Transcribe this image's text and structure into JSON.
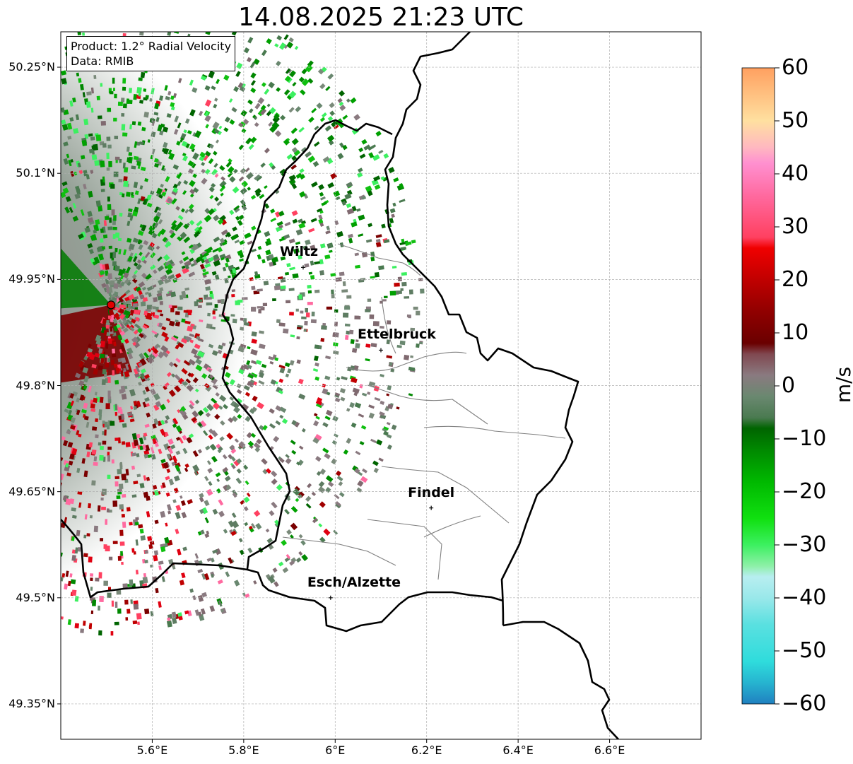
{
  "title": "14.08.2025 21:23 UTC",
  "info": {
    "product": "Product: 1.2° Radial Velocity",
    "data": "Data: RMIB"
  },
  "cities": [
    {
      "name": "Wiltz",
      "lon": 5.93,
      "lat": 49.967
    },
    {
      "name": "Ettelbruck",
      "lon": 6.1,
      "lat": 49.85
    },
    {
      "name": "Findel",
      "lon": 6.21,
      "lat": 49.627
    },
    {
      "name": "Esch/Alzette",
      "lon": 5.99,
      "lat": 49.5
    }
  ],
  "radar_site": {
    "lon": 5.51,
    "lat": 49.914
  },
  "map_extent": {
    "lon_min": 5.4,
    "lon_max": 6.8,
    "lat_min": 49.3,
    "lat_max": 50.3
  },
  "axes": {
    "x_ticks": [
      {
        "value": 5.6,
        "label": "5.6°E"
      },
      {
        "value": 5.8,
        "label": "5.8°E"
      },
      {
        "value": 6.0,
        "label": "6°E"
      },
      {
        "value": 6.2,
        "label": "6.2°E"
      },
      {
        "value": 6.4,
        "label": "6.4°E"
      },
      {
        "value": 6.6,
        "label": "6.6°E"
      }
    ],
    "y_ticks": [
      {
        "value": 50.25,
        "label": "50.25°N"
      },
      {
        "value": 50.1,
        "label": "50.1°N"
      },
      {
        "value": 49.95,
        "label": "49.95°N"
      },
      {
        "value": 49.8,
        "label": "49.8°N"
      },
      {
        "value": 49.65,
        "label": "49.65°N"
      },
      {
        "value": 49.5,
        "label": "49.5°N"
      },
      {
        "value": 49.35,
        "label": "49.35°N"
      }
    ]
  },
  "colorbar": {
    "label": "m/s",
    "min": -60,
    "max": 60,
    "ticks": [
      {
        "value": 60,
        "label": "60"
      },
      {
        "value": 50,
        "label": "50"
      },
      {
        "value": 40,
        "label": "40"
      },
      {
        "value": 30,
        "label": "30"
      },
      {
        "value": 20,
        "label": "20"
      },
      {
        "value": 10,
        "label": "10"
      },
      {
        "value": 0,
        "label": "0"
      },
      {
        "value": -10,
        "label": "−10"
      },
      {
        "value": -20,
        "label": "−20"
      },
      {
        "value": -30,
        "label": "−30"
      },
      {
        "value": -40,
        "label": "−40"
      },
      {
        "value": -50,
        "label": "−50"
      },
      {
        "value": -60,
        "label": "−60"
      }
    ],
    "stops": [
      {
        "value": -60,
        "color": "#2080c0"
      },
      {
        "value": -56,
        "color": "#26b4d0"
      },
      {
        "value": -52,
        "color": "#2fdcdc"
      },
      {
        "value": -45,
        "color": "#5ae0e0"
      },
      {
        "value": -40,
        "color": "#9ae8ea"
      },
      {
        "value": -36,
        "color": "#b8eef0"
      },
      {
        "value": -34,
        "color": "#8ef0a8"
      },
      {
        "value": -30,
        "color": "#3cf060"
      },
      {
        "value": -25,
        "color": "#10e010"
      },
      {
        "value": -18,
        "color": "#00b800"
      },
      {
        "value": -12,
        "color": "#008800"
      },
      {
        "value": -8,
        "color": "#006400"
      },
      {
        "value": -6,
        "color": "#4a7a50"
      },
      {
        "value": -2,
        "color": "#6a8870"
      },
      {
        "value": 2,
        "color": "#8a7a80"
      },
      {
        "value": 6,
        "color": "#804850"
      },
      {
        "value": 8,
        "color": "#6a0000"
      },
      {
        "value": 14,
        "color": "#900000"
      },
      {
        "value": 20,
        "color": "#c00000"
      },
      {
        "value": 26,
        "color": "#f00000"
      },
      {
        "value": 28,
        "color": "#ff4060"
      },
      {
        "value": 36,
        "color": "#ff6aa0"
      },
      {
        "value": 42,
        "color": "#ff90d0"
      },
      {
        "value": 45,
        "color": "#ffb8c0"
      },
      {
        "value": 50,
        "color": "#ffe0a0"
      },
      {
        "value": 55,
        "color": "#ffc080"
      },
      {
        "value": 60,
        "color": "#ffa060"
      }
    ]
  },
  "colors": {
    "border": "#000000",
    "admin_lines": "#808080",
    "grid": "#b0b0b0",
    "radar_site": "#e00000"
  }
}
